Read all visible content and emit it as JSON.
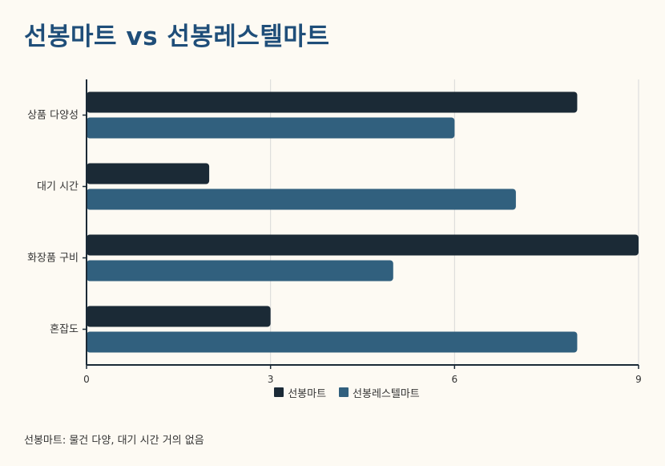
{
  "chart_data": {
    "type": "bar",
    "orientation": "horizontal",
    "title": "선봉마트 vs 선봉레스텔마트",
    "categories": [
      "상품 다양성",
      "대기 시간",
      "화장품 구비",
      "혼잡도"
    ],
    "series": [
      {
        "name": "선봉마트",
        "values": [
          8,
          2,
          9,
          3
        ],
        "color": "#1b2a36"
      },
      {
        "name": "선봉레스텔마트",
        "values": [
          6,
          7,
          5,
          8
        ],
        "color": "#31607e"
      }
    ],
    "xlim": [
      0,
      9
    ],
    "xticks": [
      0,
      3,
      6,
      9
    ],
    "grid": true,
    "legend_position": "bottom",
    "xlabel": "",
    "ylabel": ""
  },
  "footnote": "선봉마트: 물건 다양, 대기 시간 거의 없음"
}
